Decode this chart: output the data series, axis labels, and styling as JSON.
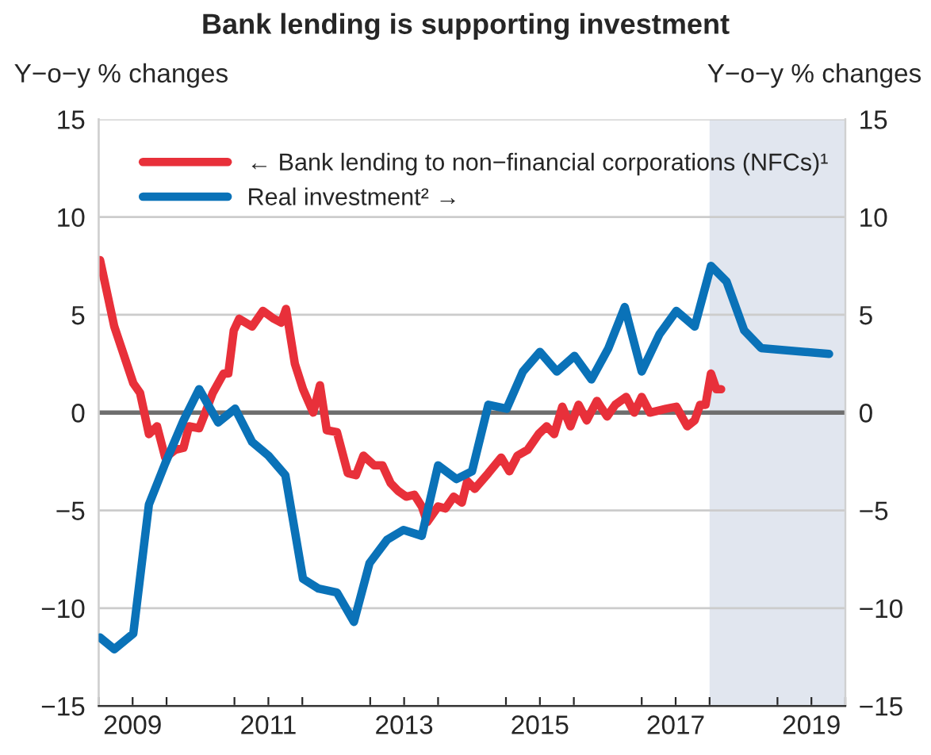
{
  "chart_data": {
    "type": "line",
    "title": "Bank lending is supporting investment",
    "ylabel": "Y−o−y % changes",
    "y2label": "Y−o−y % changes",
    "xlim": [
      2009,
      2020
    ],
    "xticks": [
      {
        "value": 2009,
        "label": null
      },
      {
        "value": 2009.5,
        "label": "2009"
      },
      {
        "value": 2010,
        "label": null
      },
      {
        "value": 2011,
        "label": null
      },
      {
        "value": 2011.5,
        "label": "2011"
      },
      {
        "value": 2012,
        "label": null
      },
      {
        "value": 2013,
        "label": null
      },
      {
        "value": 2013.5,
        "label": "2013"
      },
      {
        "value": 2014,
        "label": null
      },
      {
        "value": 2015,
        "label": null
      },
      {
        "value": 2015.5,
        "label": "2015"
      },
      {
        "value": 2016,
        "label": null
      },
      {
        "value": 2017,
        "label": null
      },
      {
        "value": 2017.5,
        "label": "2017"
      },
      {
        "value": 2018,
        "label": null
      },
      {
        "value": 2019,
        "label": null
      },
      {
        "value": 2019.5,
        "label": "2019"
      },
      {
        "value": 2020,
        "label": null
      }
    ],
    "ylim": [
      -15,
      15
    ],
    "yticks": [
      {
        "value": -15,
        "label": "−15"
      },
      {
        "value": -10,
        "label": "−10"
      },
      {
        "value": -5,
        "label": "−5"
      },
      0,
      5,
      10,
      15
    ],
    "y2lim": [
      -15,
      15
    ],
    "y2ticks": [
      {
        "value": -15,
        "label": "−15"
      },
      {
        "value": -10,
        "label": "−10"
      },
      {
        "value": -5,
        "label": "−5"
      },
      0,
      5,
      10,
      15
    ],
    "grid": "y",
    "legend": "top left",
    "line_style": "solid",
    "marker": "none",
    "ref_lines": [
      {
        "axis": "y",
        "value": 0,
        "color": "#6e6e6e"
      }
    ],
    "bands": [
      {
        "axis": "x",
        "from": 2018,
        "to": 2020,
        "color": "#e1e6ef"
      }
    ],
    "series": [
      {
        "name": "← Bank lending to non−financial corporations (NFCs)¹",
        "color": "#e8303a",
        "x": [
          2009.02,
          2009.23,
          2009.51,
          2009.61,
          2009.74,
          2009.86,
          2009.98,
          2010.13,
          2010.25,
          2010.33,
          2010.48,
          2010.56,
          2010.68,
          2010.84,
          2010.91,
          2010.99,
          2011.07,
          2011.26,
          2011.42,
          2011.58,
          2011.69,
          2011.76,
          2011.89,
          2012.01,
          2012.16,
          2012.26,
          2012.36,
          2012.51,
          2012.67,
          2012.79,
          2012.9,
          2013.06,
          2013.18,
          2013.3,
          2013.41,
          2013.53,
          2013.65,
          2013.76,
          2013.84,
          2014.0,
          2014.11,
          2014.23,
          2014.35,
          2014.43,
          2014.54,
          2014.74,
          2014.93,
          2015.05,
          2015.17,
          2015.32,
          2015.48,
          2015.6,
          2015.71,
          2015.83,
          2015.95,
          2016.07,
          2016.19,
          2016.34,
          2016.49,
          2016.61,
          2016.77,
          2016.89,
          2017.0,
          2017.12,
          2017.36,
          2017.51,
          2017.67,
          2017.78,
          2017.86,
          2017.94,
          2018.02,
          2018.1,
          2018.17
        ],
        "values": [
          7.8,
          4.4,
          1.5,
          1.0,
          -1.1,
          -0.7,
          -2.3,
          -1.9,
          -1.8,
          -0.7,
          -0.8,
          -0.1,
          1.0,
          2.0,
          2.0,
          4.2,
          4.8,
          4.4,
          5.2,
          4.8,
          4.6,
          5.3,
          2.5,
          1.2,
          0.0,
          1.4,
          -0.9,
          -1.0,
          -3.1,
          -3.2,
          -2.2,
          -2.7,
          -2.7,
          -3.6,
          -4.0,
          -4.3,
          -4.2,
          -4.8,
          -5.6,
          -4.8,
          -4.9,
          -4.3,
          -4.6,
          -3.5,
          -3.9,
          -3.1,
          -2.3,
          -3.0,
          -2.2,
          -1.9,
          -1.1,
          -0.7,
          -1.1,
          0.3,
          -0.7,
          0.4,
          -0.4,
          0.6,
          -0.2,
          0.4,
          0.8,
          0.0,
          0.8,
          0.0,
          0.2,
          0.3,
          -0.7,
          -0.4,
          0.4,
          0.4,
          2.0,
          1.2,
          1.2
        ]
      },
      {
        "name": "Real investment² →",
        "color": "#0a72b8",
        "axis": "y2",
        "x": [
          2009.02,
          2009.23,
          2009.51,
          2009.74,
          2009.98,
          2010.25,
          2010.48,
          2010.76,
          2011.01,
          2011.26,
          2011.5,
          2011.75,
          2012.01,
          2012.24,
          2012.51,
          2012.76,
          2012.99,
          2013.25,
          2013.49,
          2013.76,
          2014.0,
          2014.27,
          2014.5,
          2014.74,
          2015.01,
          2015.25,
          2015.5,
          2015.75,
          2016.01,
          2016.26,
          2016.51,
          2016.75,
          2017.0,
          2017.26,
          2017.51,
          2017.78,
          2018.02,
          2018.25,
          2018.51,
          2018.76,
          2019.76
        ],
        "values": [
          -11.5,
          -12.1,
          -11.3,
          -4.7,
          -2.6,
          -0.4,
          1.2,
          -0.5,
          0.2,
          -1.5,
          -2.2,
          -3.2,
          -8.5,
          -9.0,
          -9.2,
          -10.7,
          -7.7,
          -6.5,
          -6.0,
          -6.3,
          -2.7,
          -3.4,
          -3.0,
          0.4,
          0.2,
          2.1,
          3.1,
          2.1,
          2.9,
          1.7,
          3.3,
          5.4,
          2.1,
          4.0,
          5.2,
          4.4,
          7.5,
          6.7,
          4.2,
          3.3,
          3.0
        ]
      }
    ]
  }
}
